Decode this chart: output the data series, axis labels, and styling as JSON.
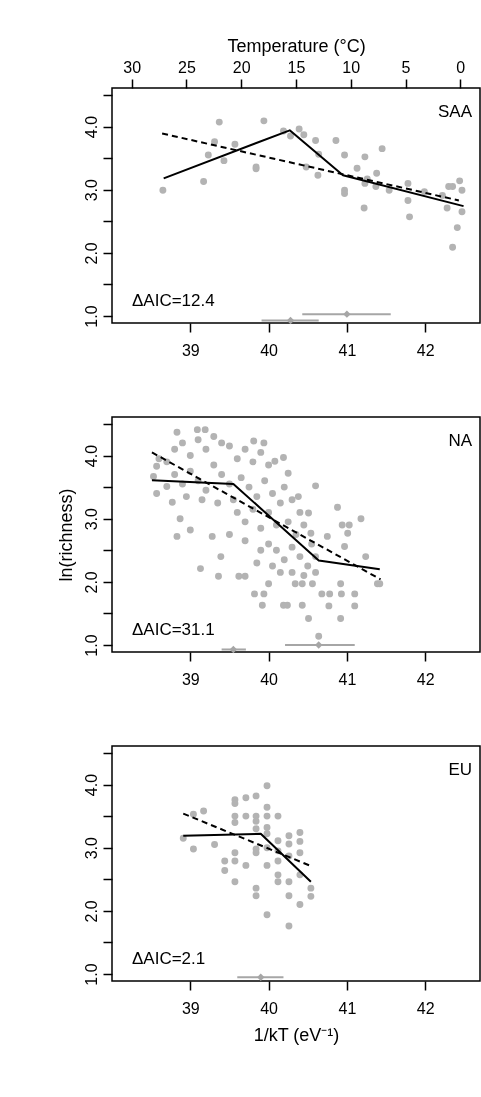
{
  "chart_data": [
    {
      "type": "scatter",
      "title": "SAA",
      "x2label": "Temperature (°C)",
      "annotations": [
        "ΔAIC=12.4"
      ],
      "xlim": [
        38.0,
        42.7
      ],
      "xticks": [
        39,
        40,
        41,
        42
      ],
      "x2lim": [
        31.8,
        -1.8
      ],
      "x2ticks": [
        30,
        25,
        20,
        15,
        10,
        5,
        0
      ],
      "ylim": [
        0.89,
        4.61
      ],
      "yticks": [
        {
          "value": 1,
          "label": "1.0"
        },
        {
          "value": 1.5,
          "label": null
        },
        {
          "value": 2,
          "label": "2.0"
        },
        {
          "value": 2.5,
          "label": null
        },
        {
          "value": 3,
          "label": "3.0"
        },
        {
          "value": 3.5,
          "label": null
        },
        {
          "value": 4,
          "label": "4.0"
        },
        {
          "value": 4.5,
          "label": null
        }
      ],
      "grid": false,
      "series": [
        {
          "type": "scatter",
          "marker": "circle",
          "color": "#b3b3b3",
          "x": [
            38.65,
            39.17,
            39.37,
            39.23,
            39.31,
            39.43,
            39.57,
            39.84,
            39.84,
            39.94,
            40.19,
            40.28,
            40.39,
            40.45,
            40.48,
            40.6,
            40.64,
            40.63,
            40.86,
            40.97,
            40.97,
            40.97,
            41.13,
            41.23,
            41.23,
            41.22,
            41.38,
            41.45,
            41.37,
            41.54,
            41.78,
            41.78,
            41.8,
            41.99,
            42.22,
            42.3,
            42.35,
            42.44,
            42.47,
            42.28,
            42.47,
            42.41,
            42.35,
            41.26
          ],
          "values": [
            2.99,
            3.13,
            4.07,
            3.55,
            3.76,
            3.46,
            3.72,
            3.36,
            3.33,
            4.09,
            3.93,
            3.85,
            3.96,
            3.87,
            3.36,
            3.78,
            3.56,
            3.23,
            3.78,
            3.55,
            2.99,
            2.94,
            3.34,
            3.52,
            3.1,
            2.71,
            3.26,
            3.65,
            3.05,
            2.99,
            3.1,
            2.83,
            2.57,
            2.97,
            2.91,
            3.05,
            3.05,
            3.14,
            2.99,
            2.71,
            2.65,
            2.4,
            2.09,
            3.17
          ]
        },
        {
          "type": "line",
          "line_style": "solid",
          "color": "#000000",
          "x": [
            38.66,
            40.27,
            40.95,
            42.49
          ],
          "values": [
            3.18,
            3.94,
            3.23,
            2.74
          ]
        },
        {
          "type": "line",
          "line_style": "dashed",
          "color": "#000000",
          "x": [
            38.64,
            42.43
          ],
          "values": [
            3.89,
            2.83
          ]
        },
        {
          "type": "scatter",
          "marker": "diamond",
          "color": "#a6a6a6",
          "x": [
            40.28,
            41.0
          ],
          "values": [
            0.93,
            1.03
          ],
          "xerrors": [
            [
              39.91,
              40.64
            ],
            [
              40.43,
              41.56
            ]
          ]
        }
      ]
    },
    {
      "type": "scatter",
      "title": "NA",
      "ylabel": "ln(richness)",
      "annotations": [
        "ΔAIC=31.1"
      ],
      "xlim": [
        38.0,
        42.7
      ],
      "xticks": [
        39,
        40,
        41,
        42
      ],
      "ylim": [
        0.89,
        4.61
      ],
      "yticks": [
        {
          "value": 1,
          "label": "1.0"
        },
        {
          "value": 1.5,
          "label": null
        },
        {
          "value": 2,
          "label": "2.0"
        },
        {
          "value": 2.5,
          "label": null
        },
        {
          "value": 3,
          "label": "3.0"
        },
        {
          "value": 3.5,
          "label": null
        },
        {
          "value": 4,
          "label": "4.0"
        },
        {
          "value": 4.5,
          "label": null
        }
      ],
      "grid": false,
      "series": [
        {
          "type": "scatter",
          "marker": "circle",
          "color": "#b3b3b3",
          "x": [
            38.83,
            39.09,
            39.19,
            38.57,
            38.53,
            38.57,
            38.7,
            38.77,
            38.87,
            39.0,
            38.83,
            39.28,
            39.39,
            39.13,
            39.36,
            39.62,
            39.7,
            39.82,
            39.94,
            39.92,
            40.19,
            40.24,
            40.43,
            40.51,
            40.64,
            40.77,
            40.92,
            41.1,
            41.1,
            40.92,
            40.93,
            40.78,
            40.68,
            40.34,
            40.43,
            40.56,
            40.0,
            40.6,
            40.88,
            41.18,
            40.94,
            41.03,
            41.01,
            40.97,
            40.75,
            41.24,
            41.39,
            41.42,
            40.19,
            39.94,
            39.81,
            40.08,
            40.25,
            40.38,
            40.51,
            40.54,
            38.7,
            38.8,
            38.9,
            39.0,
            39.1,
            39.2,
            39.3,
            39.4,
            39.5,
            38.6,
            38.8,
            38.9,
            39.0,
            39.1,
            39.2,
            39.3,
            39.4,
            39.5,
            38.95,
            39.15,
            39.35,
            39.55,
            39.6,
            39.7,
            39.8,
            39.9,
            40.0,
            39.65,
            39.75,
            39.85,
            39.95,
            40.05,
            39.6,
            39.7,
            39.8,
            39.9,
            40.0,
            40.1,
            40.15,
            40.2,
            40.3,
            40.4,
            40.25,
            40.35,
            40.45,
            40.55,
            40.3,
            40.2,
            40.4,
            40.5,
            40.6,
            40.1,
            40.0,
            39.9,
            39.7,
            39.5,
            40.15,
            40.3,
            40.45,
            40.6,
            40.05,
            39.85
          ],
          "values": [
            4.37,
            4.41,
            4.41,
            3.83,
            3.67,
            3.4,
            3.51,
            3.26,
            3.0,
            2.82,
            2.72,
            2.72,
            2.4,
            2.21,
            2.09,
            2.09,
            2.09,
            1.81,
            1.81,
            1.63,
            1.63,
            1.63,
            1.63,
            1.42,
            1.14,
            1.62,
            1.42,
            1.62,
            1.81,
            1.97,
            1.81,
            1.81,
            1.81,
            1.97,
            1.97,
            1.97,
            1.97,
            3.52,
            3.18,
            3.0,
            2.9,
            2.9,
            2.77,
            2.56,
            2.72,
            2.4,
            1.97,
            1.97,
            3.97,
            4.2,
            4.23,
            3.91,
            3.72,
            3.35,
            3.09,
            2.77,
            3.9,
            4.1,
            4.2,
            4.0,
            4.25,
            4.1,
            4.3,
            4.2,
            4.15,
            3.95,
            3.7,
            3.55,
            3.75,
            3.6,
            3.45,
            3.85,
            3.7,
            3.55,
            3.35,
            3.3,
            3.25,
            3.3,
            3.95,
            4.1,
            3.9,
            4.05,
            3.85,
            3.65,
            3.5,
            3.35,
            3.6,
            3.4,
            3.1,
            2.95,
            3.15,
            2.85,
            3.1,
            2.9,
            3.25,
            3.5,
            3.3,
            3.1,
            2.95,
            2.75,
            2.9,
            2.6,
            2.55,
            2.35,
            2.4,
            2.25,
            2.4,
            2.5,
            2.6,
            2.5,
            2.65,
            2.75,
            2.15,
            2.15,
            2.1,
            2.15,
            2.25,
            2.3
          ]
        },
        {
          "type": "line",
          "line_style": "solid",
          "color": "#000000",
          "x": [
            38.51,
            39.55,
            40.64,
            41.42
          ],
          "values": [
            3.61,
            3.55,
            2.34,
            2.2
          ]
        },
        {
          "type": "line",
          "line_style": "dashed",
          "color": "#000000",
          "x": [
            38.51,
            41.43
          ],
          "values": [
            4.05,
            2.04
          ]
        },
        {
          "type": "scatter",
          "marker": "diamond",
          "color": "#a6a6a6",
          "x": [
            39.55,
            40.64
          ],
          "values": [
            0.93,
            1.0
          ],
          "xerrors": [
            [
              39.4,
              39.71
            ],
            [
              40.21,
              41.1
            ]
          ]
        }
      ]
    },
    {
      "type": "scatter",
      "title": "EU",
      "xlabel": "1/kT (eV⁻¹)",
      "annotations": [
        "ΔAIC=2.1"
      ],
      "xlim": [
        38.0,
        42.7
      ],
      "xticks": [
        39,
        40,
        41,
        42
      ],
      "ylim": [
        0.89,
        4.61
      ],
      "yticks": [
        {
          "value": 1,
          "label": "1.0"
        },
        {
          "value": 1.5,
          "label": null
        },
        {
          "value": 2,
          "label": "2.0"
        },
        {
          "value": 2.5,
          "label": null
        },
        {
          "value": 3,
          "label": "3.0"
        },
        {
          "value": 3.5,
          "label": null
        },
        {
          "value": 4,
          "label": "4.0"
        },
        {
          "value": 4.5,
          "label": null
        }
      ],
      "grid": false,
      "series": [
        {
          "type": "scatter",
          "marker": "circle",
          "color": "#b3b3b3",
          "x": [
            38.91,
            39.04,
            39.17,
            39.04,
            39.31,
            39.44,
            39.44,
            39.57,
            39.57,
            39.57,
            39.57,
            39.57,
            39.57,
            39.57,
            39.71,
            39.71,
            39.71,
            39.84,
            39.84,
            39.84,
            39.84,
            39.84,
            39.84,
            39.84,
            39.84,
            39.98,
            39.98,
            39.98,
            39.98,
            39.98,
            39.98,
            39.98,
            39.98,
            40.12,
            40.12,
            40.12,
            40.12,
            40.12,
            40.12,
            40.26,
            40.26,
            40.26,
            40.26,
            40.26,
            40.26,
            40.4,
            40.4,
            40.4,
            40.4,
            40.4,
            40.54,
            40.54
          ],
          "values": [
            3.15,
            3.53,
            3.58,
            2.98,
            3.05,
            2.79,
            2.64,
            3.76,
            3.7,
            3.5,
            3.4,
            2.92,
            2.79,
            2.46,
            3.79,
            3.5,
            2.72,
            3.82,
            3.5,
            3.42,
            3.3,
            2.98,
            2.92,
            2.36,
            2.24,
            3.98,
            3.64,
            3.5,
            3.32,
            3.22,
            3.0,
            2.72,
            1.94,
            3.5,
            3.11,
            2.95,
            2.79,
            2.57,
            2.46,
            3.19,
            3.06,
            2.87,
            2.46,
            2.24,
            1.76,
            3.24,
            3.1,
            2.92,
            2.57,
            2.1,
            2.36,
            2.23
          ]
        },
        {
          "type": "line",
          "line_style": "solid",
          "color": "#000000",
          "x": [
            38.91,
            39.9,
            40.54
          ],
          "values": [
            3.19,
            3.22,
            2.46
          ]
        },
        {
          "type": "line",
          "line_style": "dashed",
          "color": "#000000",
          "x": [
            38.91,
            40.54
          ],
          "values": [
            3.54,
            2.71
          ]
        },
        {
          "type": "scatter",
          "marker": "diamond",
          "color": "#a6a6a6",
          "x": [
            39.9
          ],
          "values": [
            0.95
          ],
          "xerrors": [
            [
              39.6,
              40.19
            ]
          ]
        }
      ]
    }
  ]
}
